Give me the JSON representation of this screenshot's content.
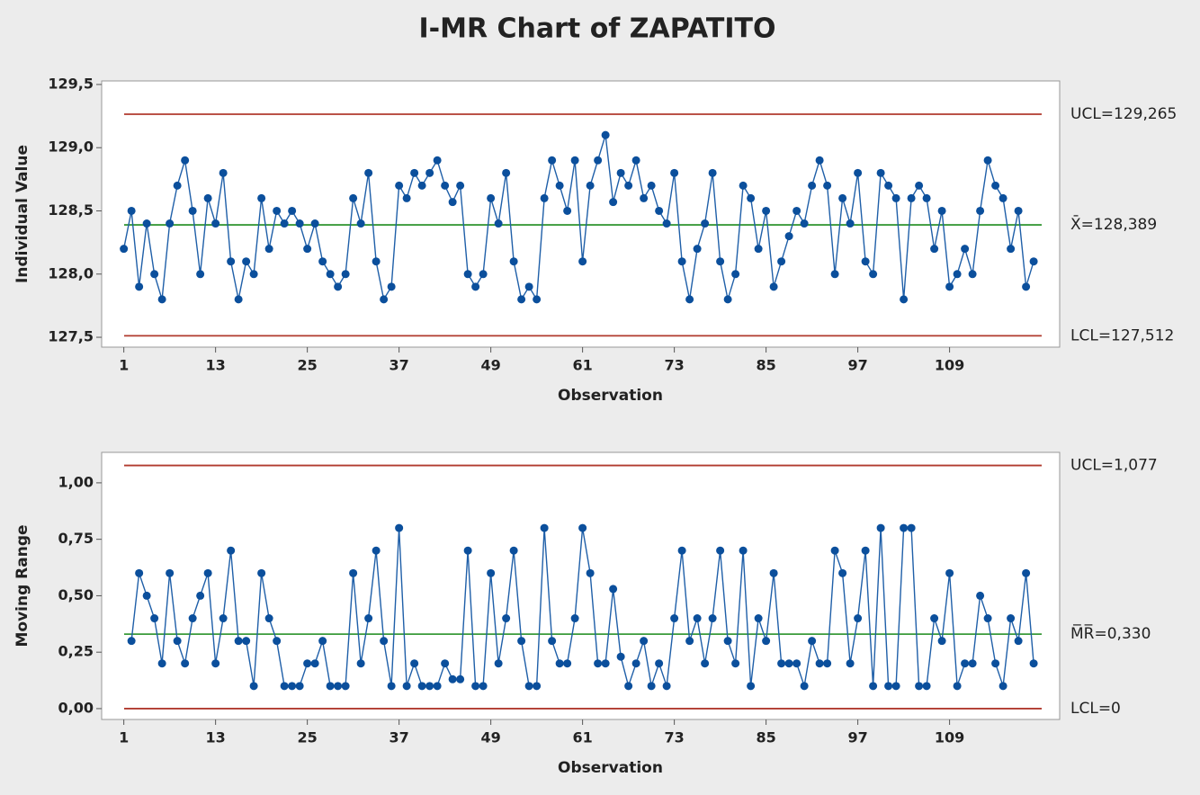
{
  "title": "I-MR Chart of ZAPATITO",
  "chart_data": [
    {
      "type": "line",
      "ylabel": "Individual Value",
      "xlabel": "Observation",
      "color": "#1f5fa8",
      "marker_color": "#0b4f9c",
      "x": [
        1,
        2,
        3,
        4,
        5,
        6,
        7,
        8,
        9,
        10,
        11,
        12,
        13,
        14,
        15,
        16,
        17,
        18,
        19,
        20,
        21,
        22,
        23,
        24,
        25,
        26,
        27,
        28,
        29,
        30,
        31,
        32,
        33,
        34,
        35,
        36,
        37,
        38,
        39,
        40,
        41,
        42,
        43,
        44,
        45,
        46,
        47,
        48,
        49,
        50,
        51,
        52,
        53,
        54,
        55,
        56,
        57,
        58,
        59,
        60,
        61,
        62,
        63,
        64,
        65,
        66,
        67,
        68,
        69,
        70,
        71,
        72,
        73,
        74,
        75,
        76,
        77,
        78,
        79,
        80,
        81,
        82,
        83,
        84,
        85,
        86,
        87,
        88,
        89,
        90,
        91,
        92,
        93,
        94,
        95,
        96,
        97,
        98,
        99,
        100,
        101,
        102,
        103,
        104,
        105,
        106,
        107,
        108,
        109,
        110,
        111,
        112,
        113,
        114,
        115,
        116,
        117,
        118,
        119,
        120
      ],
      "values": [
        128.2,
        128.5,
        127.9,
        128.4,
        128.0,
        127.8,
        128.4,
        128.7,
        128.9,
        128.5,
        128.0,
        128.6,
        128.4,
        128.8,
        128.1,
        127.8,
        128.1,
        128.0,
        128.6,
        128.2,
        128.5,
        128.4,
        128.5,
        128.4,
        128.2,
        128.4,
        128.1,
        128.0,
        127.9,
        128.0,
        128.6,
        128.4,
        128.8,
        128.1,
        127.8,
        127.9,
        128.7,
        128.6,
        128.8,
        128.7,
        128.8,
        128.9,
        128.7,
        128.57,
        128.7,
        128.0,
        127.9,
        128.0,
        128.6,
        128.4,
        128.8,
        128.1,
        127.8,
        127.9,
        127.8,
        128.6,
        128.9,
        128.7,
        128.5,
        128.9,
        128.1,
        128.7,
        128.9,
        129.1,
        128.57,
        128.8,
        128.7,
        128.9,
        128.6,
        128.7,
        128.5,
        128.4,
        128.8,
        128.1,
        127.8,
        128.2,
        128.4,
        128.8,
        128.1,
        127.8,
        128.0,
        128.7,
        128.6,
        128.2,
        128.5,
        127.9,
        128.1,
        128.3,
        128.5,
        128.4,
        128.7,
        128.9,
        128.7,
        128.0,
        128.6,
        128.4,
        128.8,
        128.1,
        128.0,
        128.8,
        128.7,
        128.6,
        127.8,
        128.6,
        128.7,
        128.6,
        128.2,
        128.5,
        127.9,
        128.0,
        128.2,
        128.0,
        128.5,
        128.9,
        128.7,
        128.6,
        128.2,
        128.5,
        127.9,
        128.1
      ],
      "xlim": [
        -1.9,
        123.4
      ],
      "xticks": [
        1,
        13,
        25,
        37,
        49,
        61,
        73,
        85,
        97,
        109
      ],
      "ylim": [
        127.422,
        129.528
      ],
      "yticks": [
        {
          "value": 127.5,
          "label": "127,5"
        },
        {
          "value": 128.0,
          "label": "128,0"
        },
        {
          "value": 128.5,
          "label": "128,5"
        },
        {
          "value": 129.0,
          "label": "129,0"
        },
        {
          "value": 129.5,
          "label": "129,5"
        }
      ],
      "limits": [
        {
          "label": "UCL=129,265",
          "value": 129.265,
          "color": "#b03a2e"
        },
        {
          "label": "X̄=128,389",
          "value": 128.389,
          "color": "#3a9a3a"
        },
        {
          "label": "LCL=127,512",
          "value": 127.512,
          "color": "#b03a2e"
        }
      ]
    },
    {
      "type": "line",
      "ylabel": "Moving Range",
      "xlabel": "Observation",
      "color": "#1f5fa8",
      "marker_color": "#0b4f9c",
      "x": [
        1,
        2,
        3,
        4,
        5,
        6,
        7,
        8,
        9,
        10,
        11,
        12,
        13,
        14,
        15,
        16,
        17,
        18,
        19,
        20,
        21,
        22,
        23,
        24,
        25,
        26,
        27,
        28,
        29,
        30,
        31,
        32,
        33,
        34,
        35,
        36,
        37,
        38,
        39,
        40,
        41,
        42,
        43,
        44,
        45,
        46,
        47,
        48,
        49,
        50,
        51,
        52,
        53,
        54,
        55,
        56,
        57,
        58,
        59,
        60,
        61,
        62,
        63,
        64,
        65,
        66,
        67,
        68,
        69,
        70,
        71,
        72,
        73,
        74,
        75,
        76,
        77,
        78,
        79,
        80,
        81,
        82,
        83,
        84,
        85,
        86,
        87,
        88,
        89,
        90,
        91,
        92,
        93,
        94,
        95,
        96,
        97,
        98,
        99,
        100,
        101,
        102,
        103,
        104,
        105,
        106,
        107,
        108,
        109,
        110,
        111,
        112,
        113,
        114,
        115,
        116,
        117,
        118,
        119,
        120
      ],
      "values": [
        null,
        0.3,
        0.6,
        0.5,
        0.4,
        0.2,
        0.6,
        0.3,
        0.2,
        0.4,
        0.5,
        0.6,
        0.2,
        0.4,
        0.7,
        0.3,
        0.3,
        0.1,
        0.6,
        0.4,
        0.3,
        0.1,
        0.1,
        0.1,
        0.2,
        0.2,
        0.3,
        0.1,
        0.1,
        0.1,
        0.6,
        0.2,
        0.4,
        0.7,
        0.3,
        0.1,
        0.8,
        0.1,
        0.2,
        0.1,
        0.1,
        0.1,
        0.2,
        0.13,
        0.13,
        0.7,
        0.1,
        0.1,
        0.6,
        0.2,
        0.4,
        0.7,
        0.3,
        0.1,
        0.1,
        0.8,
        0.3,
        0.2,
        0.2,
        0.4,
        0.8,
        0.6,
        0.2,
        0.2,
        0.53,
        0.23,
        0.1,
        0.2,
        0.3,
        0.1,
        0.2,
        0.1,
        0.4,
        0.7,
        0.3,
        0.4,
        0.2,
        0.4,
        0.7,
        0.3,
        0.2,
        0.7,
        0.1,
        0.4,
        0.3,
        0.6,
        0.2,
        0.2,
        0.2,
        0.1,
        0.3,
        0.2,
        0.2,
        0.7,
        0.6,
        0.2,
        0.4,
        0.7,
        0.1,
        0.8,
        0.1,
        0.1,
        0.8,
        0.8,
        0.1,
        0.1,
        0.4,
        0.3,
        0.6,
        0.1,
        0.2,
        0.2,
        0.5,
        0.4,
        0.2,
        0.1,
        0.4,
        0.3,
        0.6,
        0.2
      ],
      "xlim": [
        -1.9,
        123.4
      ],
      "xticks": [
        1,
        13,
        25,
        37,
        49,
        61,
        73,
        85,
        97,
        109
      ],
      "ylim": [
        -0.048,
        1.135
      ],
      "yticks": [
        {
          "value": 0,
          "label": "0,00"
        },
        {
          "value": 0.25,
          "label": "0,25"
        },
        {
          "value": 0.5,
          "label": "0,50"
        },
        {
          "value": 0.75,
          "label": "0,75"
        },
        {
          "value": 1.0,
          "label": "1,00"
        }
      ],
      "limits": [
        {
          "label": "UCL=1,077",
          "value": 1.077,
          "color": "#b03a2e"
        },
        {
          "label": "M̅R̅=0,330",
          "value": 0.33,
          "color": "#3a9a3a"
        },
        {
          "label": "LCL=0",
          "value": 0,
          "color": "#b03a2e"
        }
      ]
    }
  ]
}
